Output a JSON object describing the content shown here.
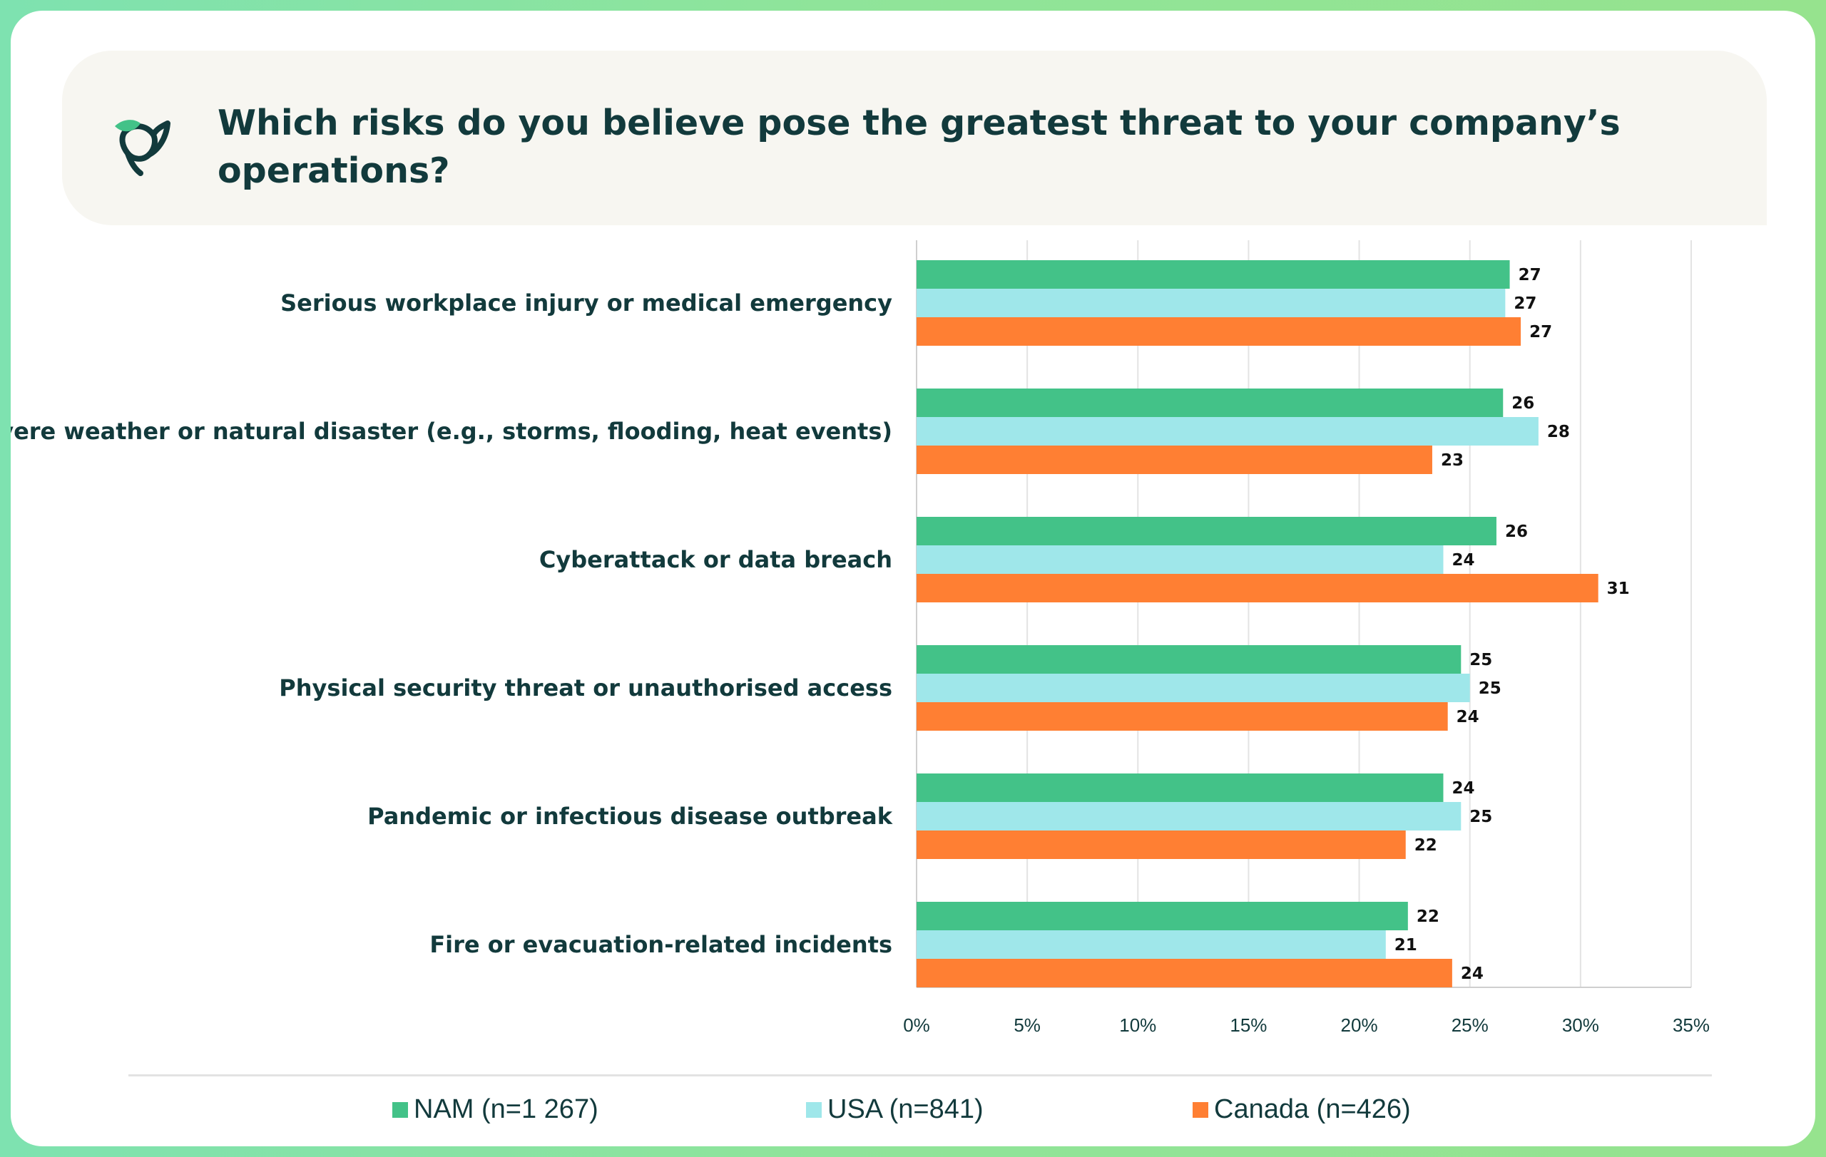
{
  "title": "Which risks do you believe pose the greatest threat to your company’s operations?",
  "icon": "bird-logo-icon",
  "colors": {
    "nam": "#43c288",
    "usa": "#9fe7ea",
    "canada": "#ff7f33",
    "text": "#123a3c",
    "grid": "#e3e3e3"
  },
  "chart_data": {
    "type": "bar",
    "orientation": "horizontal",
    "categories": [
      "Serious workplace injury or medical emergency",
      "Severe weather or natural disaster (e.g., storms, flooding, heat events)",
      "Cyberattack or data breach",
      "Physical security threat or unauthorised access",
      "Pandemic or infectious disease outbreak",
      "Fire or evacuation-related incidents"
    ],
    "series": [
      {
        "name": "NAM (n=1 267)",
        "color": "#43c288",
        "values": [
          26.8,
          26.5,
          26.2,
          24.6,
          23.8,
          22.2
        ],
        "labels": [
          "27",
          "26",
          "26",
          "25",
          "24",
          "22"
        ]
      },
      {
        "name": "USA (n=841)",
        "color": "#9fe7ea",
        "values": [
          26.6,
          28.1,
          23.8,
          25.0,
          24.6,
          21.2
        ],
        "labels": [
          "27",
          "28",
          "24",
          "25",
          "25",
          "21"
        ]
      },
      {
        "name": "Canada (n=426)",
        "color": "#ff7f33",
        "values": [
          27.3,
          23.3,
          30.8,
          24.0,
          22.1,
          24.2
        ],
        "labels": [
          "27",
          "23",
          "31",
          "24",
          "22",
          "24"
        ]
      }
    ],
    "xlim": [
      0,
      35
    ],
    "xticks": [
      "0%",
      "5%",
      "10%",
      "15%",
      "20%",
      "25%",
      "30%",
      "35%"
    ],
    "grid": true,
    "legend_position": "bottom"
  }
}
